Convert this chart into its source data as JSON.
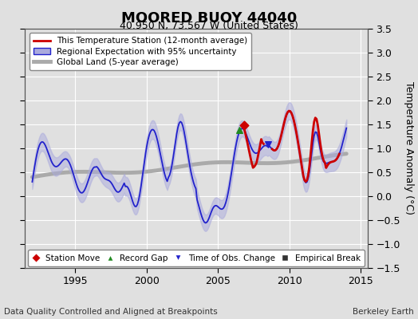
{
  "title": "MOORED BUOY 44040",
  "subtitle": "40.950 N, 73.567 W (United States)",
  "ylabel": "Temperature Anomaly (°C)",
  "xlabel_left": "Data Quality Controlled and Aligned at Breakpoints",
  "xlabel_right": "Berkeley Earth",
  "xlim": [
    1991.5,
    2015.5
  ],
  "ylim": [
    -1.5,
    3.5
  ],
  "yticks": [
    -1.5,
    -1.0,
    -0.5,
    0.0,
    0.5,
    1.0,
    1.5,
    2.0,
    2.5,
    3.0,
    3.5
  ],
  "xticks": [
    1995,
    2000,
    2005,
    2010,
    2015
  ],
  "bg_color": "#e0e0e0",
  "plot_bg": "#e0e0e0",
  "grid_color": "white",
  "station_color": "#cc0000",
  "regional_color": "#2222cc",
  "regional_fill": "#aaaadd",
  "global_color": "#aaaaaa"
}
